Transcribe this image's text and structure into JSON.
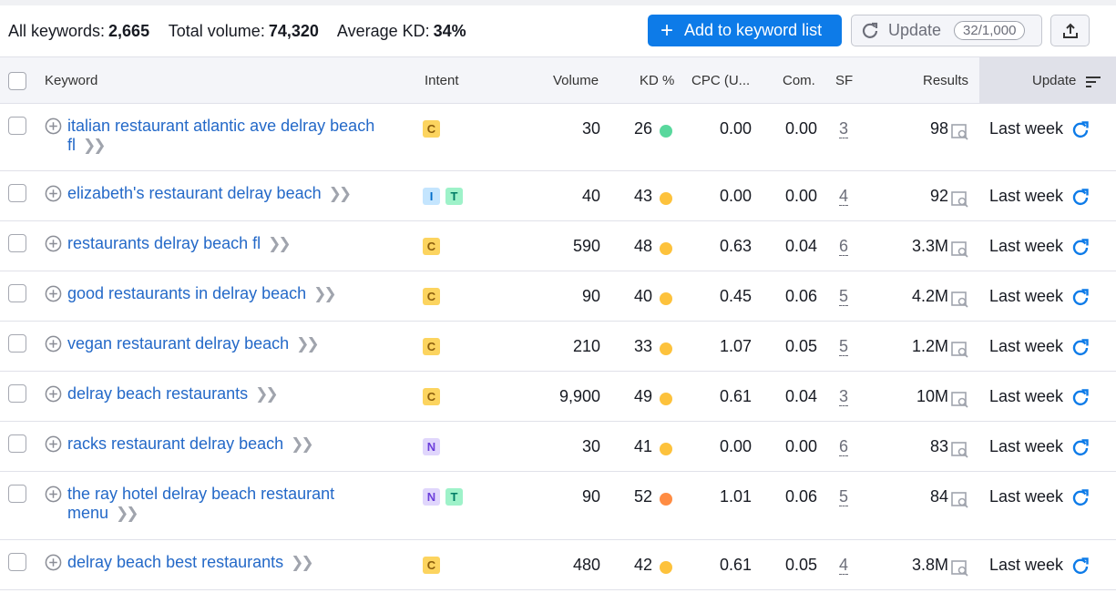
{
  "summary": {
    "all_keywords_label": "All keywords:",
    "all_keywords_value": "2,665",
    "total_volume_label": "Total volume:",
    "total_volume_value": "74,320",
    "avg_kd_label": "Average KD:",
    "avg_kd_value": "34%"
  },
  "toolbar": {
    "add_label": "Add to keyword list",
    "update_label": "Update",
    "update_counter": "32/1,000",
    "export_icon": "export-icon"
  },
  "columns": {
    "keyword": "Keyword",
    "intent": "Intent",
    "volume": "Volume",
    "kd": "KD %",
    "cpc": "CPC (U...",
    "com": "Com.",
    "sf": "SF",
    "results": "Results",
    "updated": "Update"
  },
  "colors": {
    "accent": "#0d7be8",
    "link": "#2469c8",
    "kd_green": "#59d89d",
    "kd_yellow": "#fdc23c",
    "kd_orange": "#ff8c43"
  },
  "rows": [
    {
      "keyword": "italian restaurant atlantic ave delray beach fl",
      "intent": [
        "C"
      ],
      "volume": "30",
      "kd": "26",
      "kd_color": "#59d89d",
      "cpc": "0.00",
      "com": "0.00",
      "sf": "3",
      "results": "98",
      "updated": "Last week"
    },
    {
      "keyword": "elizabeth's restaurant delray beach",
      "intent": [
        "I",
        "T"
      ],
      "volume": "40",
      "kd": "43",
      "kd_color": "#fdc23c",
      "cpc": "0.00",
      "com": "0.00",
      "sf": "4",
      "results": "92",
      "updated": "Last week"
    },
    {
      "keyword": "restaurants delray beach fl",
      "intent": [
        "C"
      ],
      "volume": "590",
      "kd": "48",
      "kd_color": "#fdc23c",
      "cpc": "0.63",
      "com": "0.04",
      "sf": "6",
      "results": "3.3M",
      "updated": "Last week"
    },
    {
      "keyword": "good restaurants in delray beach",
      "intent": [
        "C"
      ],
      "volume": "90",
      "kd": "40",
      "kd_color": "#fdc23c",
      "cpc": "0.45",
      "com": "0.06",
      "sf": "5",
      "results": "4.2M",
      "updated": "Last week"
    },
    {
      "keyword": "vegan restaurant delray beach",
      "intent": [
        "C"
      ],
      "volume": "210",
      "kd": "33",
      "kd_color": "#fdc23c",
      "cpc": "1.07",
      "com": "0.05",
      "sf": "5",
      "results": "1.2M",
      "updated": "Last week"
    },
    {
      "keyword": "delray beach restaurants",
      "intent": [
        "C"
      ],
      "volume": "9,900",
      "kd": "49",
      "kd_color": "#fdc23c",
      "cpc": "0.61",
      "com": "0.04",
      "sf": "3",
      "results": "10M",
      "updated": "Last week"
    },
    {
      "keyword": "racks restaurant delray beach",
      "intent": [
        "N"
      ],
      "volume": "30",
      "kd": "41",
      "kd_color": "#fdc23c",
      "cpc": "0.00",
      "com": "0.00",
      "sf": "6",
      "results": "83",
      "updated": "Last week"
    },
    {
      "keyword": "the ray hotel delray beach restaurant menu",
      "intent": [
        "N",
        "T"
      ],
      "volume": "90",
      "kd": "52",
      "kd_color": "#ff8c43",
      "cpc": "1.01",
      "com": "0.06",
      "sf": "5",
      "results": "84",
      "updated": "Last week"
    },
    {
      "keyword": "delray beach best restaurants",
      "intent": [
        "C"
      ],
      "volume": "480",
      "kd": "42",
      "kd_color": "#fdc23c",
      "cpc": "0.61",
      "com": "0.05",
      "sf": "4",
      "results": "3.8M",
      "updated": "Last week"
    }
  ]
}
